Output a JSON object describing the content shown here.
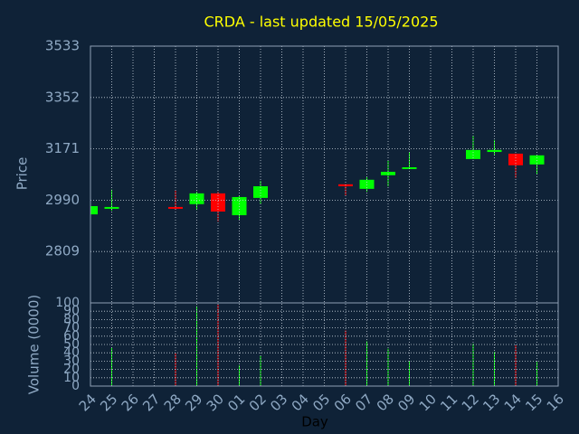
{
  "chart_data": {
    "type": "candlestick",
    "title": "CRDA - last updated 15/05/2025",
    "xlabel": "Day",
    "ylabel": "Price",
    "volume_label": "Volume (0000)",
    "categories": [
      "24",
      "25",
      "26",
      "27",
      "28",
      "29",
      "30",
      "01",
      "02",
      "03",
      "04",
      "05",
      "06",
      "07",
      "08",
      "09",
      "10",
      "11",
      "12",
      "13",
      "14",
      "15",
      "16"
    ],
    "open": [
      2940,
      2963,
      null,
      null,
      2966,
      2976,
      3014,
      2937,
      2998,
      null,
      null,
      null,
      3046,
      3030,
      3078,
      3100,
      null,
      null,
      3135,
      3160,
      3154,
      3116,
      null
    ],
    "high": [
      2969,
      3027,
      null,
      null,
      3024,
      3020,
      3020,
      3005,
      3058,
      null,
      null,
      null,
      3046,
      3071,
      3129,
      3160,
      null,
      null,
      3218,
      3202,
      3154,
      3148,
      null
    ],
    "low": [
      2940,
      2953,
      null,
      null,
      2956,
      2956,
      2915,
      2921,
      2976,
      null,
      null,
      null,
      3007,
      3020,
      3039,
      3100,
      null,
      null,
      3135,
      3148,
      3068,
      3081,
      null
    ],
    "close": [
      2969,
      2966,
      null,
      null,
      2960,
      3014,
      2950,
      3001,
      3039,
      null,
      null,
      null,
      3039,
      3062,
      3090,
      3106,
      null,
      null,
      3167,
      3167,
      3113,
      3148,
      null
    ],
    "volume": [
      null,
      46,
      null,
      null,
      40,
      96,
      98,
      25,
      37,
      null,
      null,
      null,
      67,
      54,
      45,
      30,
      null,
      null,
      51,
      41,
      49,
      29,
      null
    ],
    "ylim": [
      2628,
      3533
    ],
    "yticks": [
      2809,
      2990,
      3171,
      3352,
      3533
    ],
    "volume_ylim": [
      0,
      100
    ],
    "volume_yticks": [
      0,
      10,
      20,
      30,
      40,
      50,
      60,
      70,
      80,
      90,
      100
    ],
    "up_color": "#00ff00",
    "down_color": "#ff0000",
    "title_color": "#ffff00",
    "grid": true
  }
}
